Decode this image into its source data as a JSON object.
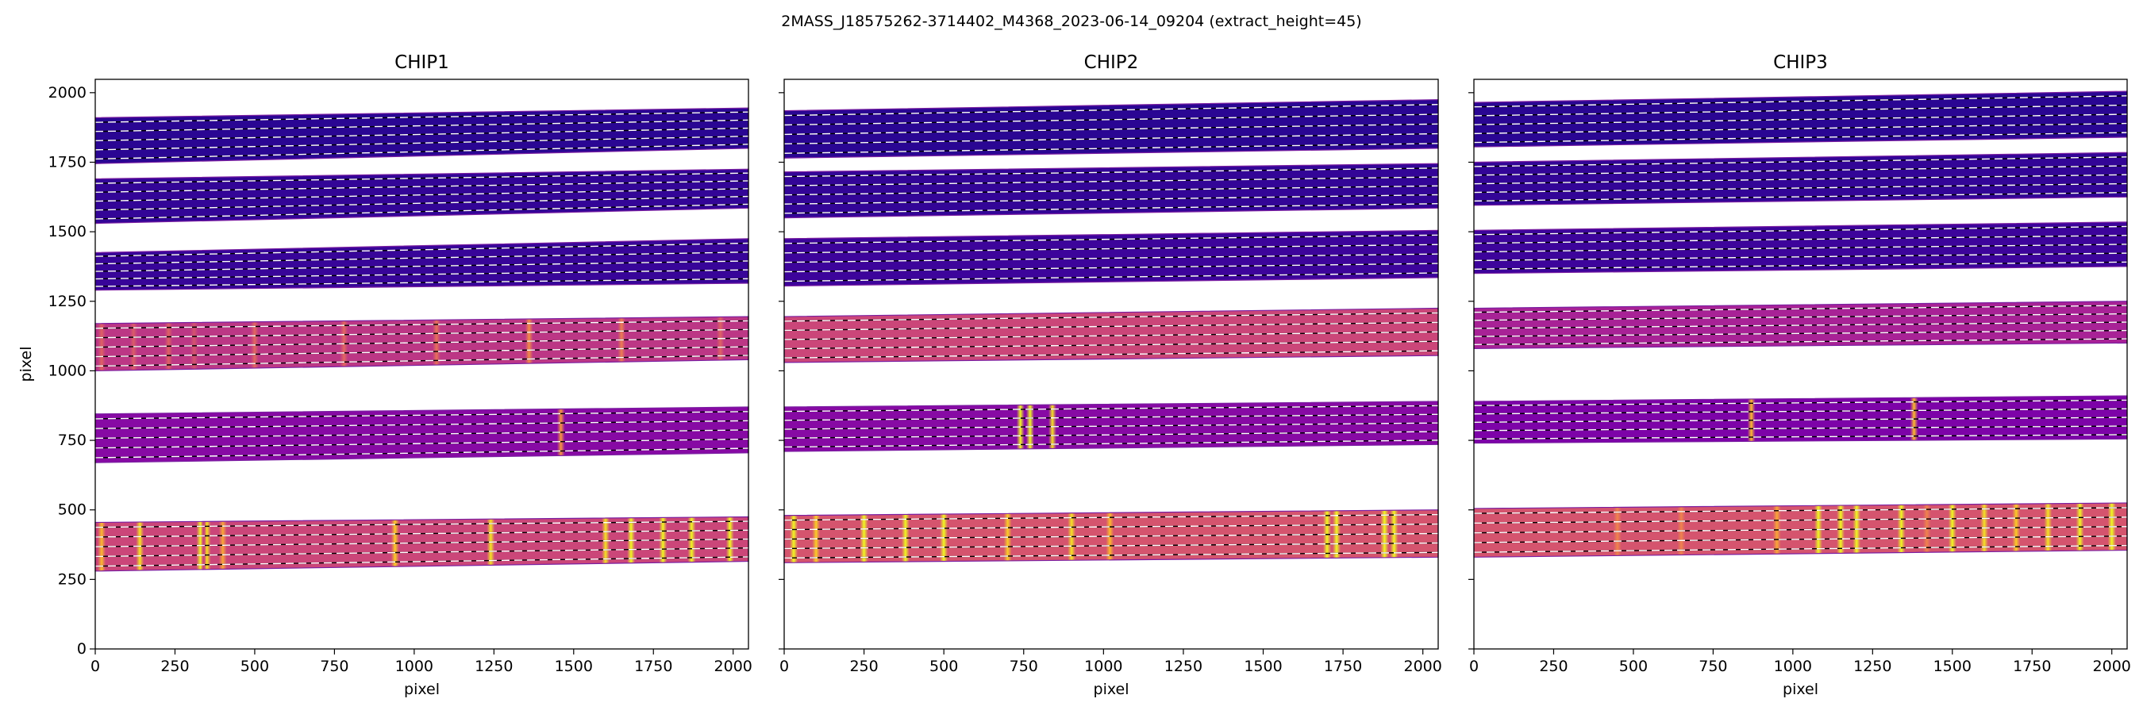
{
  "figure": {
    "title": "2MASS_J18575262-3714402_M4368_2023-06-14_09204  (extract_height=45)"
  },
  "chart_data": [
    {
      "type": "heatmap",
      "title": "CHIP1",
      "xlabel": "pixel",
      "ylabel": "pixel",
      "xlim": [
        0,
        2048
      ],
      "ylim": [
        0,
        2048
      ],
      "xticks": [
        "0",
        "250",
        "500",
        "750",
        "1000",
        "1250",
        "1500",
        "1750",
        "2000"
      ],
      "yticks": [
        "0",
        "250",
        "500",
        "750",
        "1000",
        "1250",
        "1500",
        "1750",
        "2000"
      ],
      "colormap": "plasma",
      "orders": [
        {
          "bottom_x0": 1745,
          "bottom_x2048": 1800,
          "top_x0": 1910,
          "top_x2048": 1945,
          "level": 0.06,
          "features": []
        },
        {
          "bottom_x0": 1530,
          "bottom_x2048": 1585,
          "top_x0": 1690,
          "top_x2048": 1725,
          "level": 0.08,
          "features": []
        },
        {
          "bottom_x0": 1290,
          "bottom_x2048": 1315,
          "top_x0": 1425,
          "top_x2048": 1475,
          "level": 0.09,
          "features": []
        },
        {
          "bottom_x0": 1000,
          "bottom_x2048": 1040,
          "top_x0": 1170,
          "top_x2048": 1195,
          "level": 0.45,
          "features": [
            [
              20,
              0.6
            ],
            [
              120,
              0.58
            ],
            [
              230,
              0.6
            ],
            [
              310,
              0.55
            ],
            [
              500,
              0.62
            ],
            [
              780,
              0.62
            ],
            [
              1070,
              0.65
            ],
            [
              1360,
              0.72
            ],
            [
              1650,
              0.68
            ],
            [
              1960,
              0.6
            ]
          ]
        },
        {
          "bottom_x0": 670,
          "bottom_x2048": 705,
          "top_x0": 845,
          "top_x2048": 870,
          "level": 0.28,
          "features": [
            [
              1460,
              0.75
            ]
          ]
        },
        {
          "bottom_x0": 280,
          "bottom_x2048": 315,
          "top_x0": 455,
          "top_x2048": 475,
          "level": 0.5,
          "features": [
            [
              20,
              0.85
            ],
            [
              140,
              0.95
            ],
            [
              330,
              1.0
            ],
            [
              350,
              0.95
            ],
            [
              400,
              0.8
            ],
            [
              940,
              0.9
            ],
            [
              1240,
              0.95
            ],
            [
              1600,
              0.95
            ],
            [
              1680,
              1.0
            ],
            [
              1780,
              1.0
            ],
            [
              1870,
              1.0
            ],
            [
              1990,
              1.0
            ]
          ]
        }
      ]
    },
    {
      "type": "heatmap",
      "title": "CHIP2",
      "xlabel": "pixel",
      "ylabel": "",
      "xlim": [
        0,
        2048
      ],
      "ylim": [
        0,
        2048
      ],
      "xticks": [
        "0",
        "250",
        "500",
        "750",
        "1000",
        "1250",
        "1500",
        "1750",
        "2000"
      ],
      "yticks": [],
      "colormap": "plasma",
      "orders": [
        {
          "bottom_x0": 1765,
          "bottom_x2048": 1800,
          "top_x0": 1935,
          "top_x2048": 1975,
          "level": 0.06,
          "features": []
        },
        {
          "bottom_x0": 1550,
          "bottom_x2048": 1585,
          "top_x0": 1715,
          "top_x2048": 1745,
          "level": 0.08,
          "features": []
        },
        {
          "bottom_x0": 1305,
          "bottom_x2048": 1335,
          "top_x0": 1475,
          "top_x2048": 1505,
          "level": 0.1,
          "features": []
        },
        {
          "bottom_x0": 1030,
          "bottom_x2048": 1055,
          "top_x0": 1195,
          "top_x2048": 1225,
          "level": 0.5,
          "features": []
        },
        {
          "bottom_x0": 710,
          "bottom_x2048": 735,
          "top_x0": 870,
          "top_x2048": 890,
          "level": 0.28,
          "features": [
            [
              740,
              1.0
            ],
            [
              770,
              1.0
            ],
            [
              840,
              0.95
            ]
          ]
        },
        {
          "bottom_x0": 310,
          "bottom_x2048": 330,
          "top_x0": 480,
          "top_x2048": 500,
          "level": 0.55,
          "features": [
            [
              30,
              1.0
            ],
            [
              100,
              0.9
            ],
            [
              250,
              1.0
            ],
            [
              380,
              1.0
            ],
            [
              500,
              1.0
            ],
            [
              700,
              0.9
            ],
            [
              900,
              0.95
            ],
            [
              1020,
              0.85
            ],
            [
              1700,
              1.0
            ],
            [
              1730,
              1.0
            ],
            [
              1880,
              1.0
            ],
            [
              1910,
              1.0
            ]
          ]
        }
      ]
    },
    {
      "type": "heatmap",
      "title": "CHIP3",
      "xlabel": "pixel",
      "ylabel": "",
      "xlim": [
        0,
        2048
      ],
      "ylim": [
        0,
        2048
      ],
      "xticks": [
        "0",
        "250",
        "500",
        "750",
        "1000",
        "1250",
        "1500",
        "1750",
        "2000"
      ],
      "yticks": [],
      "colormap": "plasma",
      "orders": [
        {
          "bottom_x0": 1805,
          "bottom_x2048": 1840,
          "top_x0": 1965,
          "top_x2048": 2005,
          "level": 0.06,
          "features": []
        },
        {
          "bottom_x0": 1595,
          "bottom_x2048": 1625,
          "top_x0": 1750,
          "top_x2048": 1785,
          "level": 0.08,
          "features": []
        },
        {
          "bottom_x0": 1350,
          "bottom_x2048": 1375,
          "top_x0": 1505,
          "top_x2048": 1535,
          "level": 0.1,
          "features": []
        },
        {
          "bottom_x0": 1080,
          "bottom_x2048": 1100,
          "top_x0": 1225,
          "top_x2048": 1250,
          "level": 0.38,
          "features": []
        },
        {
          "bottom_x0": 740,
          "bottom_x2048": 755,
          "top_x0": 890,
          "top_x2048": 910,
          "level": 0.25,
          "features": [
            [
              870,
              0.85
            ],
            [
              1380,
              0.85
            ]
          ]
        },
        {
          "bottom_x0": 330,
          "bottom_x2048": 355,
          "top_x0": 505,
          "top_x2048": 525,
          "level": 0.55,
          "features": [
            [
              450,
              0.7
            ],
            [
              650,
              0.7
            ],
            [
              950,
              0.8
            ],
            [
              1080,
              1.0
            ],
            [
              1150,
              1.0
            ],
            [
              1200,
              1.0
            ],
            [
              1340,
              1.0
            ],
            [
              1420,
              0.7
            ],
            [
              1500,
              1.0
            ],
            [
              1600,
              0.95
            ],
            [
              1700,
              0.9
            ],
            [
              1800,
              0.95
            ],
            [
              1900,
              1.0
            ],
            [
              2000,
              1.0
            ]
          ]
        }
      ]
    }
  ]
}
